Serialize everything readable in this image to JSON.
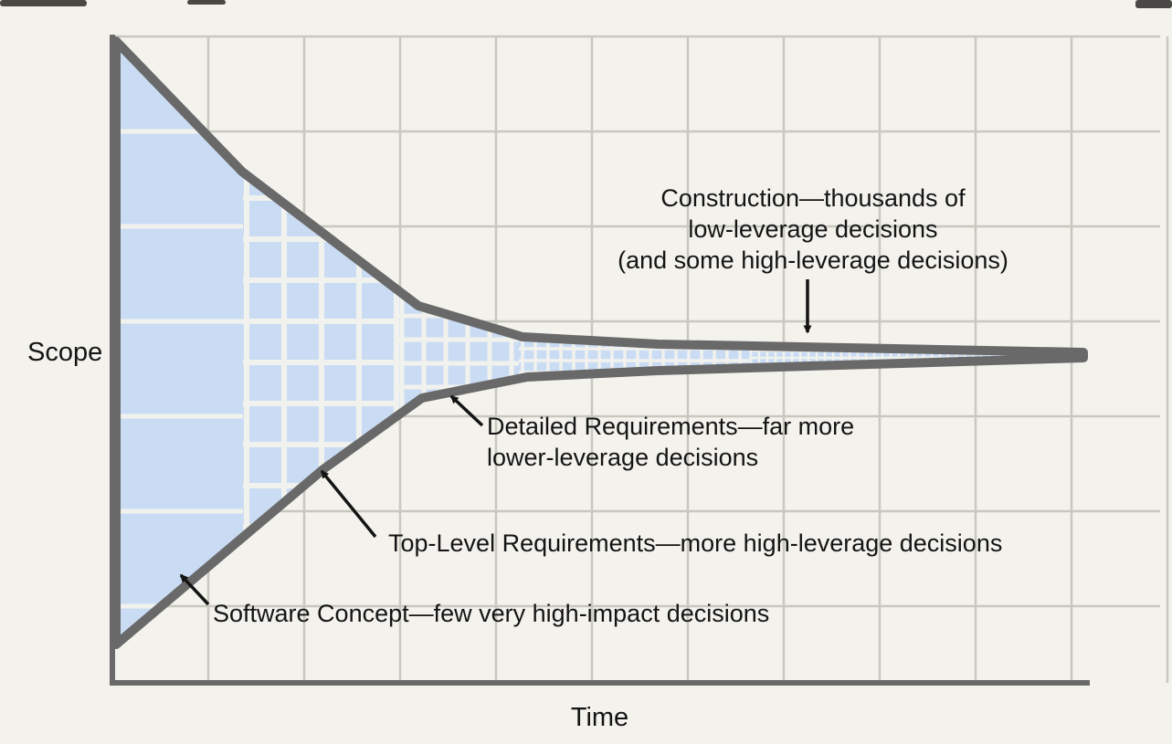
{
  "diagram": {
    "y_axis_label": "Scope",
    "x_axis_label": "Time",
    "annotations": {
      "construction": {
        "line1": "Construction—thousands of",
        "line2": "low-leverage decisions",
        "line3": "(and some high-leverage decisions)"
      },
      "detailed": {
        "line1": "Detailed Requirements—far more",
        "line2": "lower-leverage decisions"
      },
      "top_level": "Top-Level Requirements—more high-leverage decisions",
      "software_concept": "Software Concept—few very high-impact decisions"
    },
    "colors": {
      "background": "#f3f2ec",
      "outer_grid": "#c8c8c0",
      "funnel_fill": "#cadcf3",
      "inner_grid": "#f1f2ee",
      "outline": "#696969",
      "text": "#141414"
    }
  }
}
